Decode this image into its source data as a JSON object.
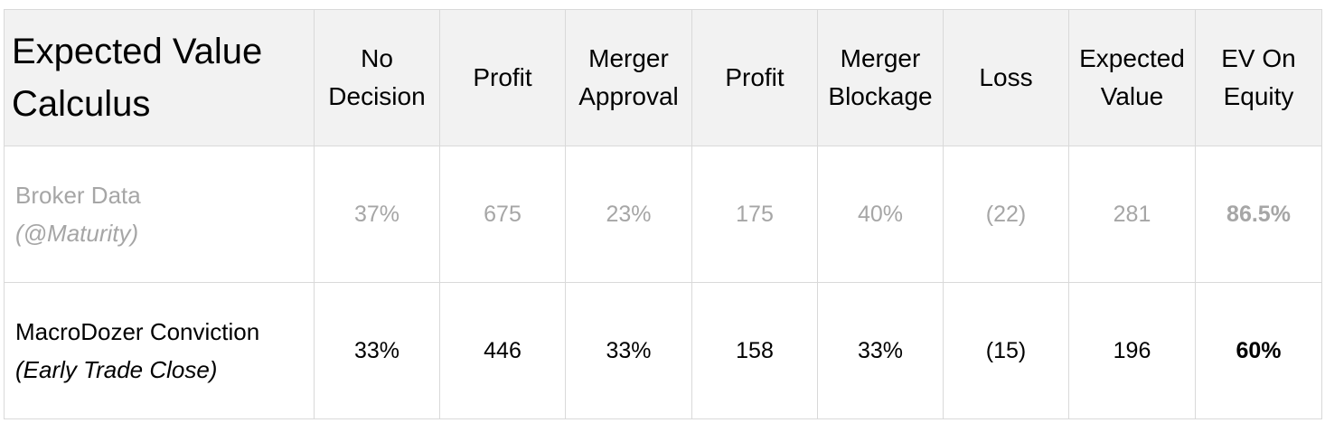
{
  "table": {
    "title_line1": "Expected Value",
    "title_line2": "Calculus",
    "columns": [
      {
        "line1": "No",
        "line2": "Decision"
      },
      {
        "line1": "Profit",
        "line2": ""
      },
      {
        "line1": "Merger",
        "line2": "Approval"
      },
      {
        "line1": "Profit",
        "line2": ""
      },
      {
        "line1": "Merger",
        "line2": "Blockage"
      },
      {
        "line1": "Loss",
        "line2": ""
      },
      {
        "line1": "Expected",
        "line2": "Value"
      },
      {
        "line1": "EV On",
        "line2": "Equity"
      }
    ],
    "rows": [
      {
        "label": "Broker Data",
        "sublabel": "(@Maturity)",
        "values": [
          "37%",
          "675",
          "23%",
          "175",
          "40%",
          "(22)",
          "281",
          "86.5%"
        ]
      },
      {
        "label": "MacroDozer Conviction",
        "sublabel": "(Early Trade Close)",
        "values": [
          "33%",
          "446",
          "33%",
          "158",
          "33%",
          "(15)",
          "196",
          "60%"
        ]
      }
    ]
  },
  "colors": {
    "header_bg": "#f2f2f2",
    "border": "#d9d9d9",
    "muted_text": "#a6a6a6",
    "text": "#000000"
  }
}
